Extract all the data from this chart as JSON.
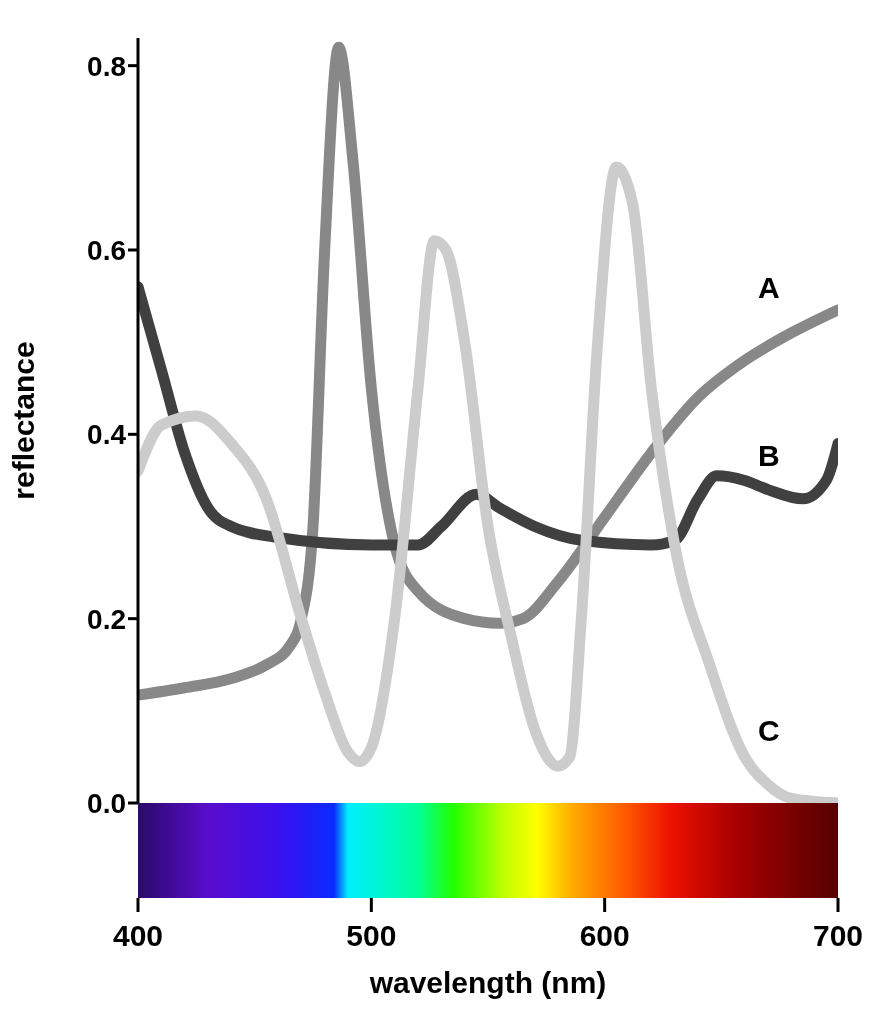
{
  "chart_data": {
    "type": "line",
    "xlabel": "wavelength (nm)",
    "ylabel": "reflectance",
    "xlim": [
      400,
      700
    ],
    "xticks": [
      400,
      500,
      600,
      700
    ],
    "ylim": [
      0,
      0.83
    ],
    "yticks": [
      {
        "value": 0,
        "label": "0.0"
      },
      {
        "value": 0.2,
        "label": "0.2"
      },
      {
        "value": 0.4,
        "label": "0.4"
      },
      {
        "value": 0.6,
        "label": "0.6"
      },
      {
        "value": 0.8,
        "label": "0.8"
      }
    ],
    "grid": false,
    "legend": false,
    "marker": "none",
    "line_style": "solid",
    "series": [
      {
        "name": "A",
        "color": "#888888",
        "x": [
          400,
          420,
          440,
          455,
          465,
          470,
          475,
          480,
          486,
          492,
          500,
          510,
          520,
          540,
          555,
          565,
          580,
          600,
          620,
          640,
          660,
          680,
          700
        ],
        "values": [
          0.117,
          0.125,
          0.135,
          0.15,
          0.17,
          0.2,
          0.3,
          0.6,
          0.82,
          0.7,
          0.45,
          0.28,
          0.23,
          0.2,
          0.195,
          0.2,
          0.24,
          0.31,
          0.38,
          0.44,
          0.48,
          0.51,
          0.535
        ]
      },
      {
        "name": "B",
        "color": "#404040",
        "x": [
          400,
          410,
          420,
          430,
          440,
          460,
          500,
          520,
          530,
          545,
          555,
          570,
          590,
          620,
          630,
          640,
          648,
          660,
          670,
          685,
          695,
          700
        ],
        "values": [
          0.56,
          0.47,
          0.38,
          0.32,
          0.3,
          0.288,
          0.28,
          0.28,
          0.3,
          0.335,
          0.32,
          0.3,
          0.285,
          0.28,
          0.285,
          0.33,
          0.355,
          0.35,
          0.34,
          0.33,
          0.35,
          0.39
        ]
      },
      {
        "name": "C",
        "color": "#cccccc",
        "x": [
          400,
          410,
          425,
          440,
          455,
          470,
          480,
          490,
          495,
          500,
          510,
          520,
          527,
          532,
          540,
          550,
          560,
          570,
          580,
          585,
          590,
          597,
          605,
          612,
          620,
          630,
          645,
          660,
          670,
          680,
          700
        ],
        "values": [
          0.36,
          0.41,
          0.42,
          0.39,
          0.33,
          0.2,
          0.12,
          0.055,
          0.045,
          0.06,
          0.2,
          0.45,
          0.61,
          0.6,
          0.5,
          0.3,
          0.18,
          0.08,
          0.04,
          0.05,
          0.2,
          0.5,
          0.69,
          0.65,
          0.45,
          0.28,
          0.15,
          0.05,
          0.02,
          0.005,
          0
        ]
      }
    ]
  }
}
